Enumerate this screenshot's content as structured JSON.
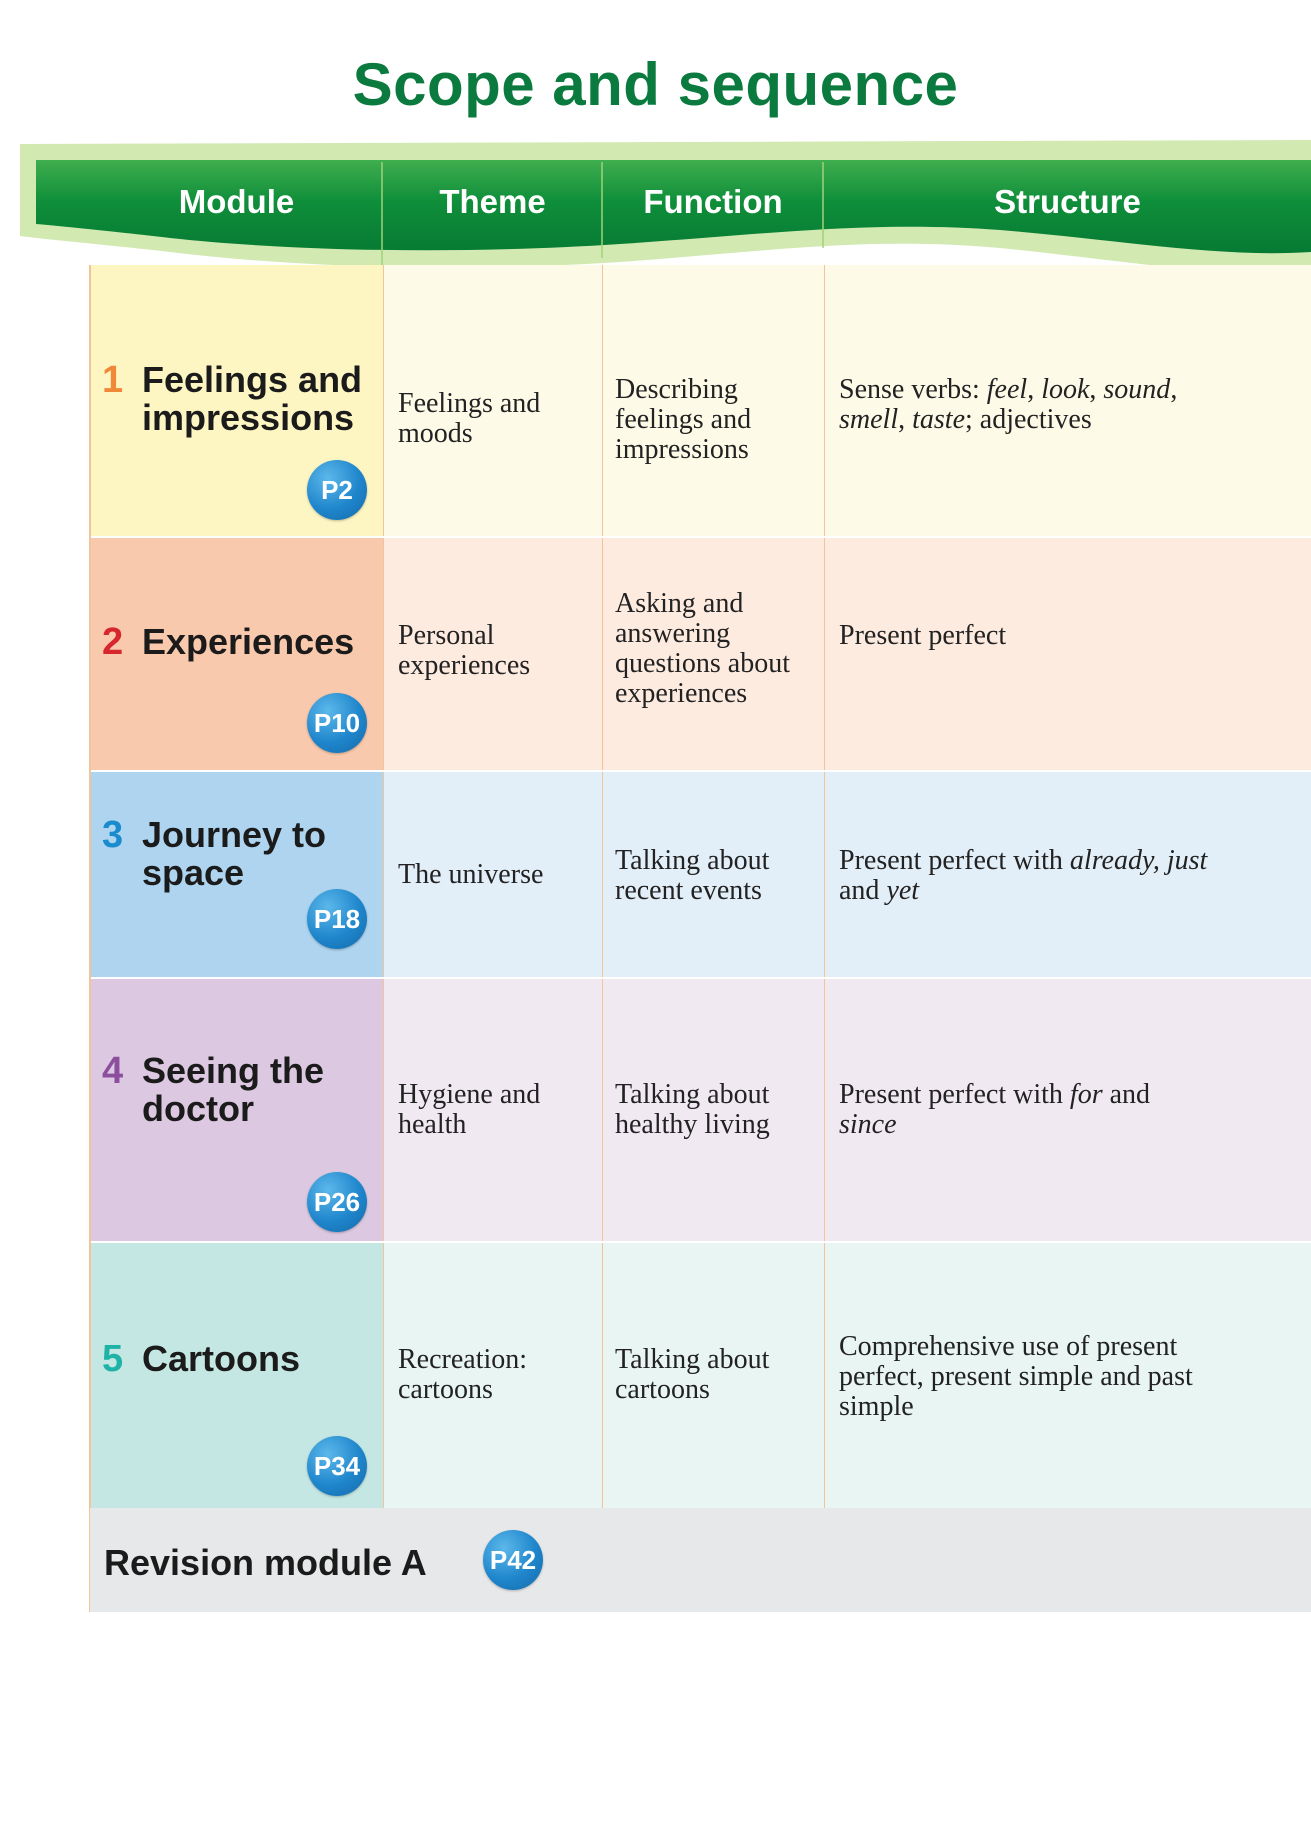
{
  "page": {
    "title": "Scope and sequence"
  },
  "header": {
    "columns": [
      "Module",
      "Theme",
      "Function",
      "Structure"
    ],
    "banner_color": "#0e8a3c"
  },
  "modules": [
    {
      "number": "1",
      "number_color": "#f0883a",
      "name": "Feelings and impressions",
      "page_ref": "P2",
      "theme": "Feelings and moods",
      "function": "Describing feelings and impressions",
      "structure_parts": [
        {
          "text": "Sense verbs: ",
          "italic": false
        },
        {
          "text": "feel",
          "italic": true
        },
        {
          "text": ", ",
          "italic": false
        },
        {
          "text": "look",
          "italic": true
        },
        {
          "text": ", ",
          "italic": false
        },
        {
          "text": "sound",
          "italic": true
        },
        {
          "text": ", ",
          "italic": false
        },
        {
          "text": "smell",
          "italic": true
        },
        {
          "text": ", ",
          "italic": false
        },
        {
          "text": "taste",
          "italic": true
        },
        {
          "text": "; adjectives",
          "italic": false
        }
      ],
      "module_bg": "#fdf6c3",
      "row_bg": "#fdfbe8"
    },
    {
      "number": "2",
      "number_color": "#d6262e",
      "name": "Experiences",
      "page_ref": "P10",
      "theme": "Personal experiences",
      "function": "Asking and answering questions about experiences",
      "structure_parts": [
        {
          "text": "Present perfect",
          "italic": false
        }
      ],
      "module_bg": "#f9c9ad",
      "row_bg": "#fdebe0"
    },
    {
      "number": "3",
      "number_color": "#1a8ccd",
      "name": "Journey to space",
      "page_ref": "P18",
      "theme": "The universe",
      "function": "Talking about recent events",
      "structure_parts": [
        {
          "text": "Present perfect with ",
          "italic": false
        },
        {
          "text": "already, just",
          "italic": true
        },
        {
          "text": " and ",
          "italic": false
        },
        {
          "text": "yet",
          "italic": true
        }
      ],
      "module_bg": "#aed4ef",
      "row_bg": "#e3eff8"
    },
    {
      "number": "4",
      "number_color": "#8b4f9e",
      "name": "Seeing the doctor",
      "page_ref": "P26",
      "theme": "Hygiene and health",
      "function": "Talking about healthy living",
      "structure_parts": [
        {
          "text": "Present perfect with ",
          "italic": false
        },
        {
          "text": "for",
          "italic": true
        },
        {
          "text": " and ",
          "italic": false
        },
        {
          "text": "since",
          "italic": true
        }
      ],
      "module_bg": "#dcc8e0",
      "row_bg": "#f1e9f2"
    },
    {
      "number": "5",
      "number_color": "#1fb3a8",
      "name": "Cartoons",
      "page_ref": "P34",
      "theme": "Recreation: cartoons",
      "function": "Talking about cartoons",
      "structure_parts": [
        {
          "text": "Comprehensive use of present perfect, present simple and past simple",
          "italic": false
        }
      ],
      "module_bg": "#c5e7e3",
      "row_bg": "#e9f5f3"
    }
  ],
  "revision": {
    "label": "Revision module A",
    "page_ref": "P42"
  }
}
